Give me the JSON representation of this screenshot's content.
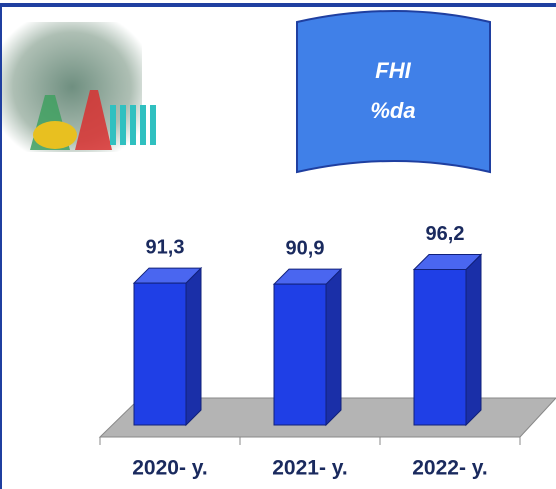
{
  "chart_data": {
    "type": "bar3d",
    "title": "FHI",
    "subtitle": "%da",
    "categories": [
      "2020- y.",
      "2021- y.",
      "2022- y."
    ],
    "values": [
      91.3,
      90.9,
      96.2
    ],
    "value_labels": [
      "91,3",
      "90,9",
      "96,2"
    ],
    "color": "#1f3fe6",
    "ylim": [
      40,
      100
    ]
  }
}
